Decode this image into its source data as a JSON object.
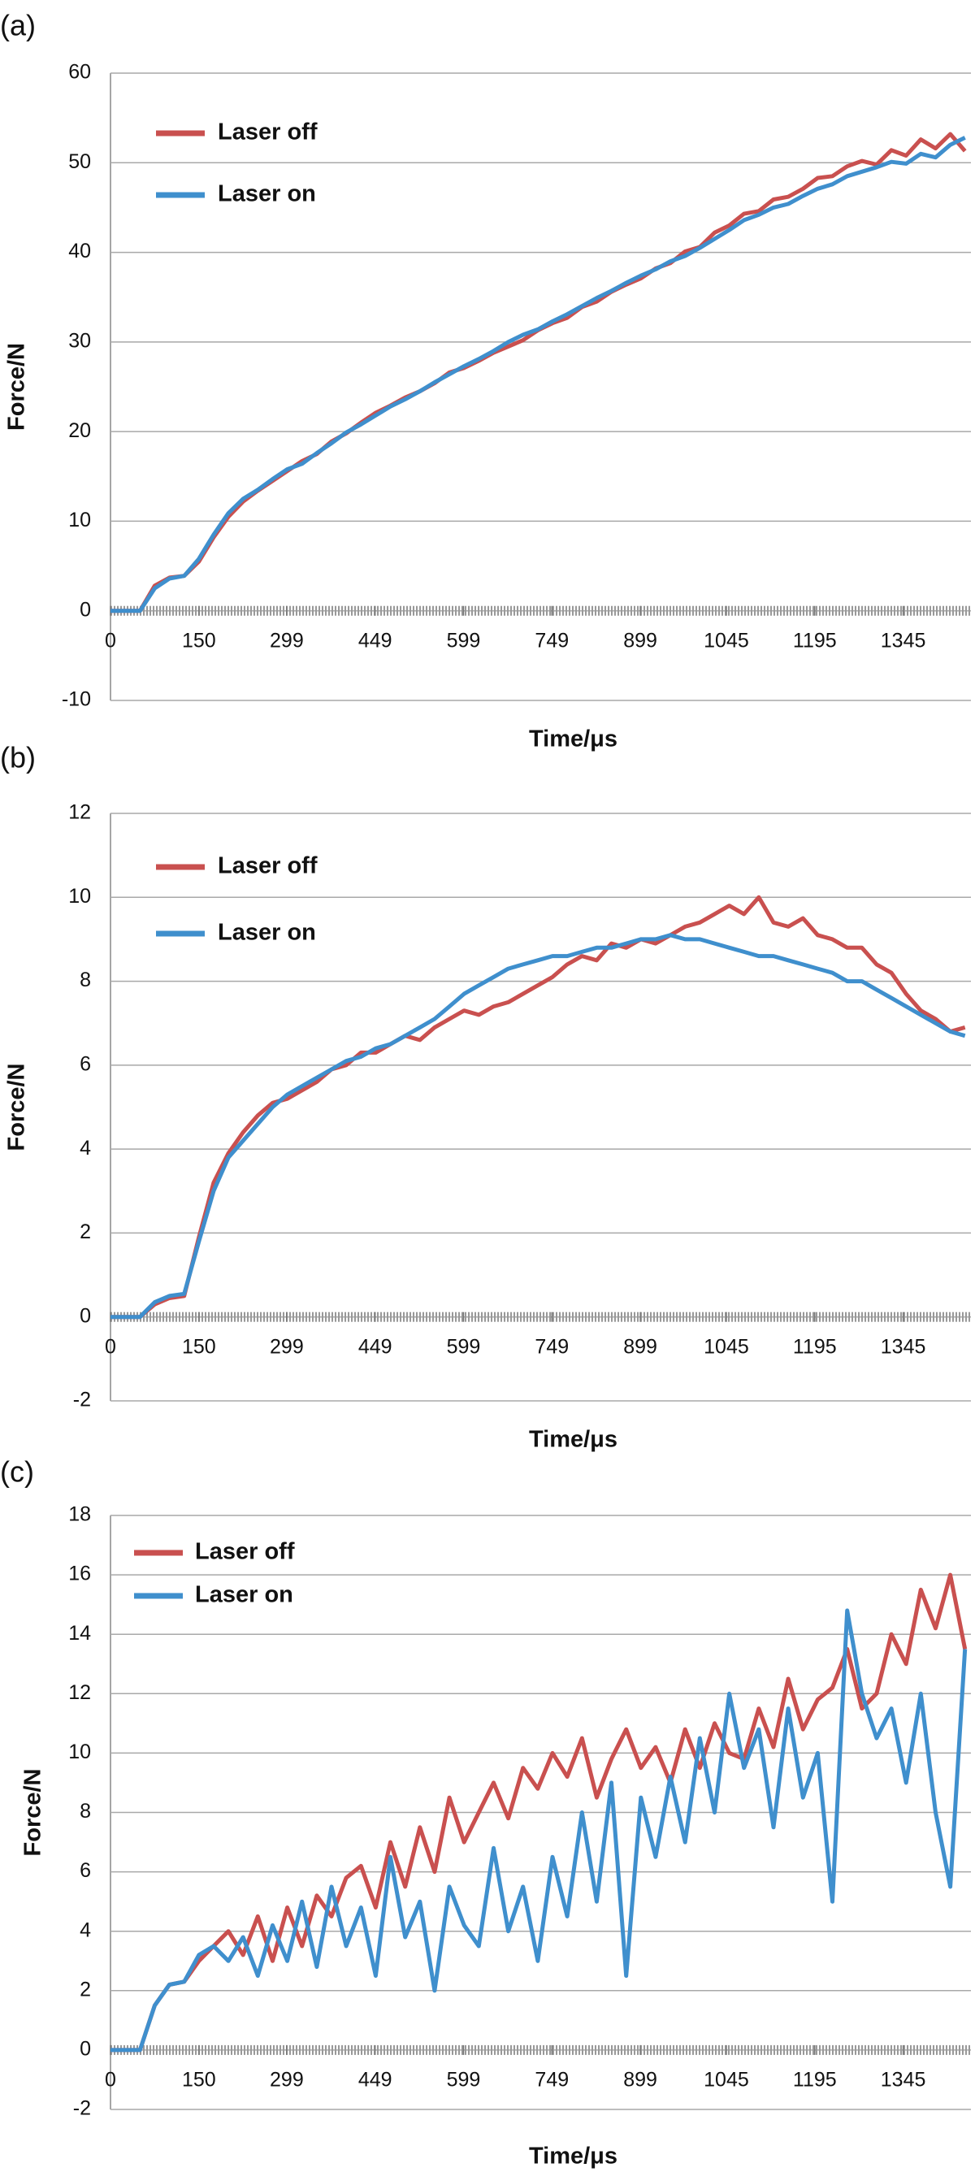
{
  "chart_data": [
    {
      "panel": "(a)",
      "type": "line",
      "x_label": "Time/μs",
      "y_label": "Force/N",
      "x": [
        0,
        25,
        50,
        75,
        100,
        125,
        150,
        175,
        200,
        225,
        250,
        275,
        300,
        325,
        350,
        375,
        400,
        425,
        450,
        475,
        500,
        525,
        550,
        575,
        600,
        625,
        650,
        675,
        700,
        725,
        750,
        775,
        800,
        825,
        850,
        875,
        900,
        925,
        950,
        975,
        1000,
        1025,
        1050,
        1075,
        1100,
        1125,
        1150,
        1175,
        1200,
        1225,
        1250,
        1275,
        1300,
        1325,
        1350,
        1375,
        1400,
        1425,
        1450
      ],
      "series": [
        {
          "name": "Laser off",
          "color": "#c9504f",
          "values": [
            0,
            0,
            0,
            2.8,
            3.7,
            3.9,
            5.5,
            8.2,
            10.5,
            12.2,
            13.4,
            14.5,
            15.6,
            16.7,
            17.5,
            18.9,
            19.8,
            21.0,
            22.1,
            22.9,
            23.8,
            24.5,
            25.4,
            26.6,
            27.1,
            27.9,
            28.8,
            29.5,
            30.2,
            31.3,
            32.1,
            32.7,
            33.9,
            34.5,
            35.6,
            36.4,
            37.1,
            38.2,
            38.8,
            40.1,
            40.6,
            42.2,
            43.0,
            44.3,
            44.6,
            45.9,
            46.2,
            47.1,
            48.3,
            48.5,
            49.6,
            50.2,
            49.8,
            51.4,
            50.8,
            52.6,
            51.6,
            53.2,
            51.3
          ]
        },
        {
          "name": "Laser on",
          "color": "#3f8fcd",
          "values": [
            0,
            0,
            0,
            2.5,
            3.6,
            3.9,
            5.8,
            8.5,
            10.9,
            12.5,
            13.5,
            14.7,
            15.8,
            16.4,
            17.6,
            18.7,
            19.9,
            20.8,
            21.8,
            22.8,
            23.6,
            24.5,
            25.5,
            26.4,
            27.3,
            28.1,
            29.0,
            30.0,
            30.8,
            31.4,
            32.3,
            33.1,
            34.0,
            34.9,
            35.7,
            36.6,
            37.4,
            38.1,
            39.0,
            39.6,
            40.5,
            41.5,
            42.5,
            43.6,
            44.2,
            45.0,
            45.4,
            46.3,
            47.1,
            47.6,
            48.5,
            49.0,
            49.5,
            50.1,
            49.9,
            51.0,
            50.6,
            52.0,
            52.8
          ]
        }
      ],
      "xlim": [
        0,
        1460
      ],
      "ylim": [
        -10,
        60
      ],
      "xticks": [
        0,
        150,
        299,
        449,
        599,
        749,
        899,
        1045,
        1195,
        1345
      ],
      "yticks": [
        -10,
        0,
        10,
        20,
        30,
        40,
        50,
        60
      ],
      "grid": true,
      "legend_position": "upper left"
    },
    {
      "panel": "(b)",
      "type": "line",
      "x_label": "Time/μs",
      "y_label": "Force/N",
      "x": [
        0,
        25,
        50,
        75,
        100,
        125,
        150,
        175,
        200,
        225,
        250,
        275,
        300,
        325,
        350,
        375,
        400,
        425,
        450,
        475,
        500,
        525,
        550,
        575,
        600,
        625,
        650,
        675,
        700,
        725,
        750,
        775,
        800,
        825,
        850,
        875,
        900,
        925,
        950,
        975,
        1000,
        1025,
        1050,
        1075,
        1100,
        1125,
        1150,
        1175,
        1200,
        1225,
        1250,
        1275,
        1300,
        1325,
        1350,
        1375,
        1400,
        1425,
        1450
      ],
      "series": [
        {
          "name": "Laser off",
          "color": "#c9504f",
          "values": [
            0,
            0,
            0,
            0.3,
            0.45,
            0.5,
            1.9,
            3.2,
            3.9,
            4.4,
            4.8,
            5.1,
            5.2,
            5.4,
            5.6,
            5.9,
            6.0,
            6.3,
            6.3,
            6.5,
            6.7,
            6.6,
            6.9,
            7.1,
            7.3,
            7.2,
            7.4,
            7.5,
            7.7,
            7.9,
            8.1,
            8.4,
            8.6,
            8.5,
            8.9,
            8.8,
            9.0,
            8.9,
            9.1,
            9.3,
            9.4,
            9.6,
            9.8,
            9.6,
            10.0,
            9.4,
            9.3,
            9.5,
            9.1,
            9.0,
            8.8,
            8.8,
            8.4,
            8.2,
            7.7,
            7.3,
            7.1,
            6.8,
            6.9
          ]
        },
        {
          "name": "Laser on",
          "color": "#3f8fcd",
          "values": [
            0,
            0,
            0,
            0.35,
            0.5,
            0.55,
            1.8,
            3.0,
            3.8,
            4.2,
            4.6,
            5.0,
            5.3,
            5.5,
            5.7,
            5.9,
            6.1,
            6.2,
            6.4,
            6.5,
            6.7,
            6.9,
            7.1,
            7.4,
            7.7,
            7.9,
            8.1,
            8.3,
            8.4,
            8.5,
            8.6,
            8.6,
            8.7,
            8.8,
            8.8,
            8.9,
            9.0,
            9.0,
            9.1,
            9.0,
            9.0,
            8.9,
            8.8,
            8.7,
            8.6,
            8.6,
            8.5,
            8.4,
            8.3,
            8.2,
            8.0,
            8.0,
            7.8,
            7.6,
            7.4,
            7.2,
            7.0,
            6.8,
            6.7
          ]
        }
      ],
      "xlim": [
        0,
        1460
      ],
      "ylim": [
        -2,
        12
      ],
      "xticks": [
        0,
        150,
        299,
        449,
        599,
        749,
        899,
        1045,
        1195,
        1345
      ],
      "yticks": [
        -2,
        0,
        2,
        4,
        6,
        8,
        10,
        12
      ],
      "grid": true,
      "legend_position": "upper left"
    },
    {
      "panel": "(c)",
      "type": "line",
      "x_label": "Time/μs",
      "y_label": "Force/N",
      "x": [
        0,
        25,
        50,
        75,
        100,
        125,
        150,
        175,
        200,
        225,
        250,
        275,
        300,
        325,
        350,
        375,
        400,
        425,
        450,
        475,
        500,
        525,
        550,
        575,
        600,
        625,
        650,
        675,
        700,
        725,
        750,
        775,
        800,
        825,
        850,
        875,
        900,
        925,
        950,
        975,
        1000,
        1025,
        1050,
        1075,
        1100,
        1125,
        1150,
        1175,
        1200,
        1225,
        1250,
        1275,
        1300,
        1325,
        1350,
        1375,
        1400,
        1425,
        1450
      ],
      "series": [
        {
          "name": "Laser off",
          "color": "#c9504f",
          "values": [
            0,
            0,
            0,
            1.5,
            2.2,
            2.3,
            3.0,
            3.5,
            4.0,
            3.2,
            4.5,
            3.0,
            4.8,
            3.5,
            5.2,
            4.5,
            5.8,
            6.2,
            4.8,
            7.0,
            5.5,
            7.5,
            6.0,
            8.5,
            7.0,
            8.0,
            9.0,
            7.8,
            9.5,
            8.8,
            10.0,
            9.2,
            10.5,
            8.5,
            9.8,
            10.8,
            9.5,
            10.2,
            9.0,
            10.8,
            9.5,
            11.0,
            10.0,
            9.8,
            11.5,
            10.2,
            12.5,
            10.8,
            11.8,
            12.2,
            13.5,
            11.5,
            12.0,
            14.0,
            13.0,
            15.5,
            14.2,
            16.0,
            13.5
          ]
        },
        {
          "name": "Laser on",
          "color": "#3f8fcd",
          "values": [
            0,
            0,
            0,
            1.5,
            2.2,
            2.3,
            3.2,
            3.5,
            3.0,
            3.8,
            2.5,
            4.2,
            3.0,
            5.0,
            2.8,
            5.5,
            3.5,
            4.8,
            2.5,
            6.5,
            3.8,
            5.0,
            2.0,
            5.5,
            4.2,
            3.5,
            6.8,
            4.0,
            5.5,
            3.0,
            6.5,
            4.5,
            8.0,
            5.0,
            9.0,
            2.5,
            8.5,
            6.5,
            9.2,
            7.0,
            10.5,
            8.0,
            12.0,
            9.5,
            10.8,
            7.5,
            11.5,
            8.5,
            10.0,
            5.0,
            14.8,
            12.0,
            10.5,
            11.5,
            9.0,
            12.0,
            8.0,
            5.5,
            13.5
          ]
        }
      ],
      "xlim": [
        0,
        1460
      ],
      "ylim": [
        -2,
        18
      ],
      "xticks": [
        0,
        150,
        299,
        449,
        599,
        749,
        899,
        1045,
        1195,
        1345
      ],
      "yticks": [
        -2,
        0,
        2,
        4,
        6,
        8,
        10,
        12,
        14,
        16,
        18
      ],
      "grid": true,
      "legend_position": "upper left"
    }
  ]
}
